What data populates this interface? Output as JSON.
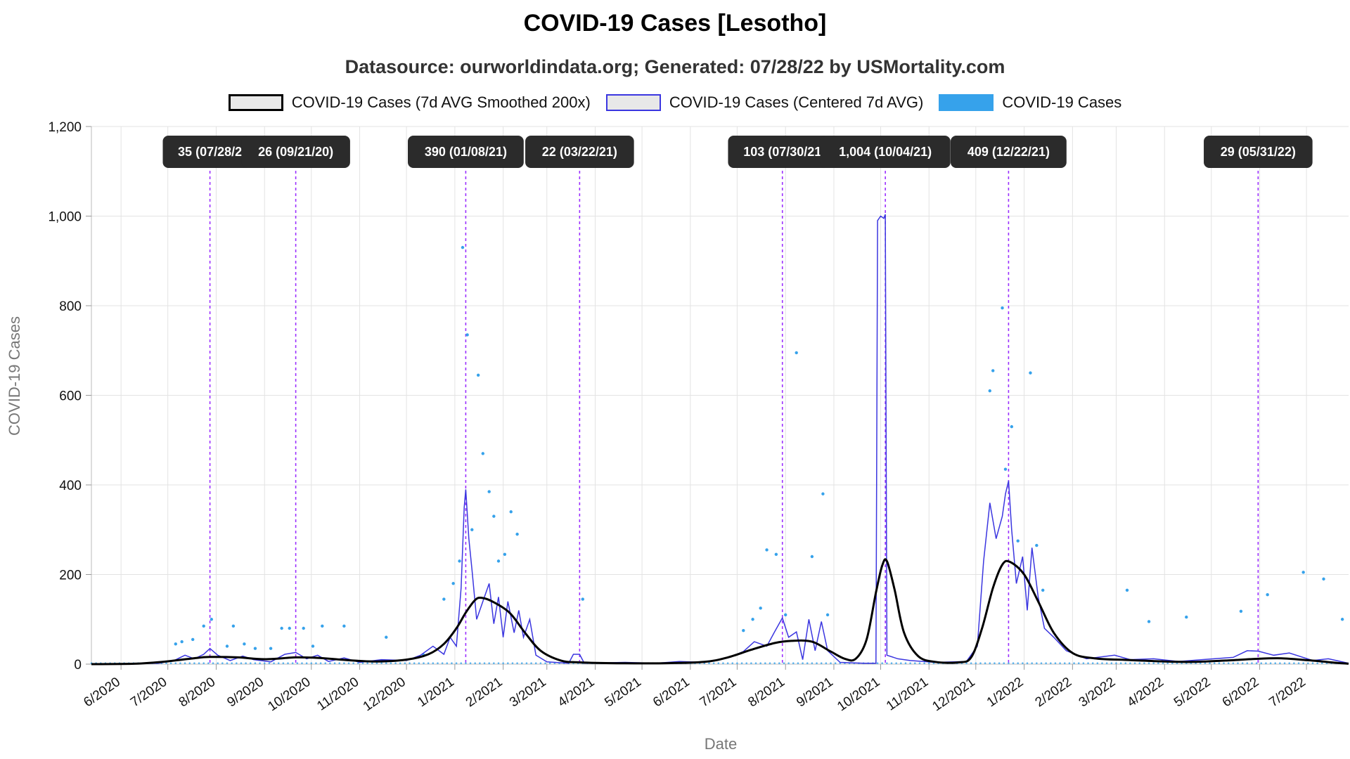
{
  "title": "COVID-19 Cases [Lesotho]",
  "subtitle": "Datasource: ourworldindata.org; Generated: 07/28/22 by USMortality.com",
  "legend": [
    {
      "label": "COVID-19 Cases (7d AVG Smoothed 200x)",
      "color": "#000000"
    },
    {
      "label": "COVID-19 Cases (Centered 7d AVG)",
      "color": "#3b36e0"
    },
    {
      "label": "COVID-19 Cases",
      "color": "#36a2eb"
    }
  ],
  "chart_data": {
    "type": "line",
    "title": "COVID-19 Cases [Lesotho]",
    "xlabel": "Date",
    "ylabel": "COVID-19 Cases",
    "ylim": [
      0,
      1200
    ],
    "yticks": [
      0,
      200,
      400,
      600,
      800,
      1000,
      1200
    ],
    "ytick_labels": [
      "0",
      "200",
      "400",
      "600",
      "800",
      "1,000",
      "1,200"
    ],
    "xlim": [
      "2020-05-13",
      "2022-07-28"
    ],
    "xtick_labels": [
      "6/2020",
      "7/2020",
      "8/2020",
      "9/2020",
      "10/2020",
      "11/2020",
      "12/2020",
      "1/2021",
      "2/2021",
      "3/2021",
      "4/2021",
      "5/2021",
      "6/2021",
      "7/2021",
      "8/2021",
      "9/2021",
      "10/2021",
      "11/2021",
      "12/2021",
      "1/2022",
      "2/2022",
      "3/2022",
      "4/2022",
      "5/2022",
      "6/2022",
      "7/2022"
    ],
    "xtick_dates": [
      "2020-06-01",
      "2020-07-01",
      "2020-08-01",
      "2020-09-01",
      "2020-10-01",
      "2020-11-01",
      "2020-12-01",
      "2021-01-01",
      "2021-02-01",
      "2021-03-01",
      "2021-04-01",
      "2021-05-01",
      "2021-06-01",
      "2021-07-01",
      "2021-08-01",
      "2021-09-01",
      "2021-10-01",
      "2021-11-01",
      "2021-12-01",
      "2022-01-01",
      "2022-02-01",
      "2022-03-01",
      "2022-04-01",
      "2022-05-01",
      "2022-06-01",
      "2022-07-01"
    ],
    "grid": true,
    "legend_position": "top",
    "series": [
      {
        "name": "COVID-19 Cases (7d AVG Smoothed 200x)",
        "color": "#000000",
        "points": [
          [
            "2020-05-13",
            0
          ],
          [
            "2020-06-10",
            1
          ],
          [
            "2020-06-30",
            6
          ],
          [
            "2020-07-20",
            14
          ],
          [
            "2020-07-28",
            16
          ],
          [
            "2020-08-15",
            15
          ],
          [
            "2020-09-01",
            11
          ],
          [
            "2020-09-21",
            15
          ],
          [
            "2020-10-05",
            14
          ],
          [
            "2020-10-20",
            10
          ],
          [
            "2020-11-10",
            6
          ],
          [
            "2020-12-01",
            10
          ],
          [
            "2020-12-15",
            22
          ],
          [
            "2020-12-25",
            45
          ],
          [
            "2021-01-02",
            80
          ],
          [
            "2021-01-08",
            115
          ],
          [
            "2021-01-14",
            143
          ],
          [
            "2021-01-18",
            148
          ],
          [
            "2021-01-25",
            140
          ],
          [
            "2021-02-05",
            115
          ],
          [
            "2021-02-15",
            70
          ],
          [
            "2021-02-25",
            30
          ],
          [
            "2021-03-10",
            8
          ],
          [
            "2021-03-22",
            4
          ],
          [
            "2021-04-15",
            2
          ],
          [
            "2021-05-15",
            2
          ],
          [
            "2021-06-10",
            5
          ],
          [
            "2021-06-25",
            15
          ],
          [
            "2021-07-10",
            32
          ],
          [
            "2021-07-25",
            47
          ],
          [
            "2021-08-05",
            52
          ],
          [
            "2021-08-18",
            50
          ],
          [
            "2021-08-30",
            28
          ],
          [
            "2021-09-08",
            12
          ],
          [
            "2021-09-15",
            12
          ],
          [
            "2021-09-22",
            55
          ],
          [
            "2021-09-28",
            160
          ],
          [
            "2021-10-02",
            220
          ],
          [
            "2021-10-05",
            230
          ],
          [
            "2021-10-10",
            165
          ],
          [
            "2021-10-16",
            70
          ],
          [
            "2021-10-25",
            18
          ],
          [
            "2021-11-05",
            5
          ],
          [
            "2021-11-20",
            4
          ],
          [
            "2021-11-28",
            15
          ],
          [
            "2021-12-05",
            80
          ],
          [
            "2021-12-12",
            170
          ],
          [
            "2021-12-18",
            222
          ],
          [
            "2021-12-23",
            228
          ],
          [
            "2022-01-01",
            200
          ],
          [
            "2022-01-10",
            140
          ],
          [
            "2022-01-20",
            70
          ],
          [
            "2022-02-01",
            25
          ],
          [
            "2022-02-15",
            13
          ],
          [
            "2022-03-10",
            9
          ],
          [
            "2022-04-01",
            6
          ],
          [
            "2022-04-20",
            5
          ],
          [
            "2022-05-10",
            8
          ],
          [
            "2022-05-31",
            12
          ],
          [
            "2022-06-15",
            13
          ],
          [
            "2022-07-01",
            9
          ],
          [
            "2022-07-20",
            3
          ],
          [
            "2022-07-28",
            1
          ]
        ]
      },
      {
        "name": "COVID-19 Cases (Centered 7d AVG)",
        "color": "#3b36e0",
        "points": [
          [
            "2020-05-13",
            0
          ],
          [
            "2020-06-25",
            2
          ],
          [
            "2020-07-05",
            8
          ],
          [
            "2020-07-12",
            20
          ],
          [
            "2020-07-18",
            12
          ],
          [
            "2020-07-24",
            22
          ],
          [
            "2020-07-28",
            35
          ],
          [
            "2020-08-02",
            20
          ],
          [
            "2020-08-10",
            8
          ],
          [
            "2020-08-18",
            18
          ],
          [
            "2020-08-25",
            10
          ],
          [
            "2020-09-05",
            5
          ],
          [
            "2020-09-14",
            22
          ],
          [
            "2020-09-21",
            26
          ],
          [
            "2020-09-28",
            12
          ],
          [
            "2020-10-05",
            20
          ],
          [
            "2020-10-12",
            6
          ],
          [
            "2020-10-22",
            14
          ],
          [
            "2020-11-01",
            4
          ],
          [
            "2020-11-15",
            10
          ],
          [
            "2020-12-01",
            8
          ],
          [
            "2020-12-10",
            20
          ],
          [
            "2020-12-18",
            40
          ],
          [
            "2020-12-25",
            22
          ],
          [
            "2020-12-29",
            60
          ],
          [
            "2021-01-02",
            40
          ],
          [
            "2021-01-05",
            170
          ],
          [
            "2021-01-07",
            350
          ],
          [
            "2021-01-08",
            390
          ],
          [
            "2021-01-10",
            280
          ],
          [
            "2021-01-12",
            210
          ],
          [
            "2021-01-15",
            100
          ],
          [
            "2021-01-20",
            150
          ],
          [
            "2021-01-23",
            180
          ],
          [
            "2021-01-26",
            90
          ],
          [
            "2021-01-29",
            150
          ],
          [
            "2021-02-01",
            60
          ],
          [
            "2021-02-04",
            140
          ],
          [
            "2021-02-08",
            70
          ],
          [
            "2021-02-11",
            120
          ],
          [
            "2021-02-14",
            60
          ],
          [
            "2021-02-18",
            100
          ],
          [
            "2021-02-22",
            20
          ],
          [
            "2021-03-01",
            5
          ],
          [
            "2021-03-15",
            2
          ],
          [
            "2021-03-18",
            22
          ],
          [
            "2021-03-22",
            22
          ],
          [
            "2021-03-25",
            2
          ],
          [
            "2021-04-20",
            4
          ],
          [
            "2021-05-10",
            2
          ],
          [
            "2021-05-25",
            6
          ],
          [
            "2021-06-10",
            4
          ],
          [
            "2021-06-25",
            14
          ],
          [
            "2021-07-05",
            28
          ],
          [
            "2021-07-12",
            50
          ],
          [
            "2021-07-20",
            40
          ],
          [
            "2021-07-25",
            72
          ],
          [
            "2021-07-30",
            103
          ],
          [
            "2021-08-03",
            60
          ],
          [
            "2021-08-08",
            72
          ],
          [
            "2021-08-12",
            10
          ],
          [
            "2021-08-16",
            100
          ],
          [
            "2021-08-20",
            30
          ],
          [
            "2021-08-24",
            95
          ],
          [
            "2021-08-28",
            30
          ],
          [
            "2021-09-05",
            4
          ],
          [
            "2021-09-20",
            2
          ],
          [
            "2021-09-28",
            2
          ],
          [
            "2021-09-29",
            990
          ],
          [
            "2021-10-01",
            1000
          ],
          [
            "2021-10-03",
            995
          ],
          [
            "2021-10-04",
            1004
          ],
          [
            "2021-10-05",
            20
          ],
          [
            "2021-10-12",
            12
          ],
          [
            "2021-10-20",
            8
          ],
          [
            "2021-11-05",
            4
          ],
          [
            "2021-11-25",
            6
          ],
          [
            "2021-12-02",
            40
          ],
          [
            "2021-12-06",
            230
          ],
          [
            "2021-12-10",
            360
          ],
          [
            "2021-12-14",
            280
          ],
          [
            "2021-12-18",
            330
          ],
          [
            "2021-12-20",
            380
          ],
          [
            "2021-12-22",
            409
          ],
          [
            "2021-12-24",
            300
          ],
          [
            "2021-12-27",
            180
          ],
          [
            "2021-12-31",
            240
          ],
          [
            "2022-01-03",
            120
          ],
          [
            "2022-01-06",
            260
          ],
          [
            "2022-01-10",
            150
          ],
          [
            "2022-01-14",
            80
          ],
          [
            "2022-01-20",
            60
          ],
          [
            "2022-01-28",
            30
          ],
          [
            "2022-02-10",
            12
          ],
          [
            "2022-02-28",
            20
          ],
          [
            "2022-03-10",
            10
          ],
          [
            "2022-03-25",
            12
          ],
          [
            "2022-04-10",
            6
          ],
          [
            "2022-04-25",
            10
          ],
          [
            "2022-05-15",
            15
          ],
          [
            "2022-05-24",
            30
          ],
          [
            "2022-05-31",
            29
          ],
          [
            "2022-06-10",
            20
          ],
          [
            "2022-06-20",
            25
          ],
          [
            "2022-07-05",
            8
          ],
          [
            "2022-07-15",
            12
          ],
          [
            "2022-07-28",
            2
          ]
        ]
      },
      {
        "name": "COVID-19 Cases",
        "color": "#36a2eb",
        "points": [
          [
            "2020-07-06",
            45
          ],
          [
            "2020-07-10",
            50
          ],
          [
            "2020-07-17",
            55
          ],
          [
            "2020-07-24",
            85
          ],
          [
            "2020-07-29",
            100
          ],
          [
            "2020-08-08",
            40
          ],
          [
            "2020-08-12",
            85
          ],
          [
            "2020-08-19",
            45
          ],
          [
            "2020-08-26",
            35
          ],
          [
            "2020-09-05",
            35
          ],
          [
            "2020-09-12",
            80
          ],
          [
            "2020-09-17",
            80
          ],
          [
            "2020-09-26",
            80
          ],
          [
            "2020-10-02",
            40
          ],
          [
            "2020-10-08",
            85
          ],
          [
            "2020-10-22",
            85
          ],
          [
            "2020-11-18",
            60
          ],
          [
            "2020-12-12",
            20
          ],
          [
            "2020-12-25",
            145
          ],
          [
            "2020-12-31",
            180
          ],
          [
            "2021-01-04",
            230
          ],
          [
            "2021-01-06",
            930
          ],
          [
            "2021-01-09",
            735
          ],
          [
            "2021-01-12",
            300
          ],
          [
            "2021-01-16",
            645
          ],
          [
            "2021-01-19",
            470
          ],
          [
            "2021-01-23",
            385
          ],
          [
            "2021-01-26",
            330
          ],
          [
            "2021-01-29",
            230
          ],
          [
            "2021-02-02",
            245
          ],
          [
            "2021-02-06",
            340
          ],
          [
            "2021-02-10",
            290
          ],
          [
            "2021-03-24",
            145
          ],
          [
            "2021-07-05",
            75
          ],
          [
            "2021-07-11",
            100
          ],
          [
            "2021-07-16",
            125
          ],
          [
            "2021-07-20",
            255
          ],
          [
            "2021-07-26",
            245
          ],
          [
            "2021-08-01",
            110
          ],
          [
            "2021-08-08",
            695
          ],
          [
            "2021-08-18",
            240
          ],
          [
            "2021-08-25",
            380
          ],
          [
            "2021-08-28",
            110
          ],
          [
            "2021-12-10",
            610
          ],
          [
            "2021-12-12",
            655
          ],
          [
            "2021-12-18",
            795
          ],
          [
            "2021-12-20",
            435
          ],
          [
            "2021-12-24",
            530
          ],
          [
            "2021-12-28",
            275
          ],
          [
            "2022-01-05",
            650
          ],
          [
            "2022-01-09",
            265
          ],
          [
            "2022-01-13",
            165
          ],
          [
            "2022-03-08",
            165
          ],
          [
            "2022-03-22",
            95
          ],
          [
            "2022-04-15",
            105
          ],
          [
            "2022-05-20",
            118
          ],
          [
            "2022-06-06",
            155
          ],
          [
            "2022-06-29",
            205
          ],
          [
            "2022-07-12",
            190
          ],
          [
            "2022-07-24",
            100
          ]
        ]
      }
    ],
    "annotations": [
      {
        "date": "2020-07-28",
        "label": "35 (07/28/2"
      },
      {
        "date": "2020-09-21",
        "label": "26 (09/21/20)"
      },
      {
        "date": "2021-01-08",
        "label": "390 (01/08/21)"
      },
      {
        "date": "2021-03-22",
        "label": "22 (03/22/21)"
      },
      {
        "date": "2021-07-30",
        "label": "103 (07/30/21"
      },
      {
        "date": "2021-10-04",
        "label": "1,004 (10/04/21)"
      },
      {
        "date": "2021-12-22",
        "label": "409 (12/22/21)"
      },
      {
        "date": "2022-05-31",
        "label": "29 (05/31/22)"
      }
    ]
  }
}
